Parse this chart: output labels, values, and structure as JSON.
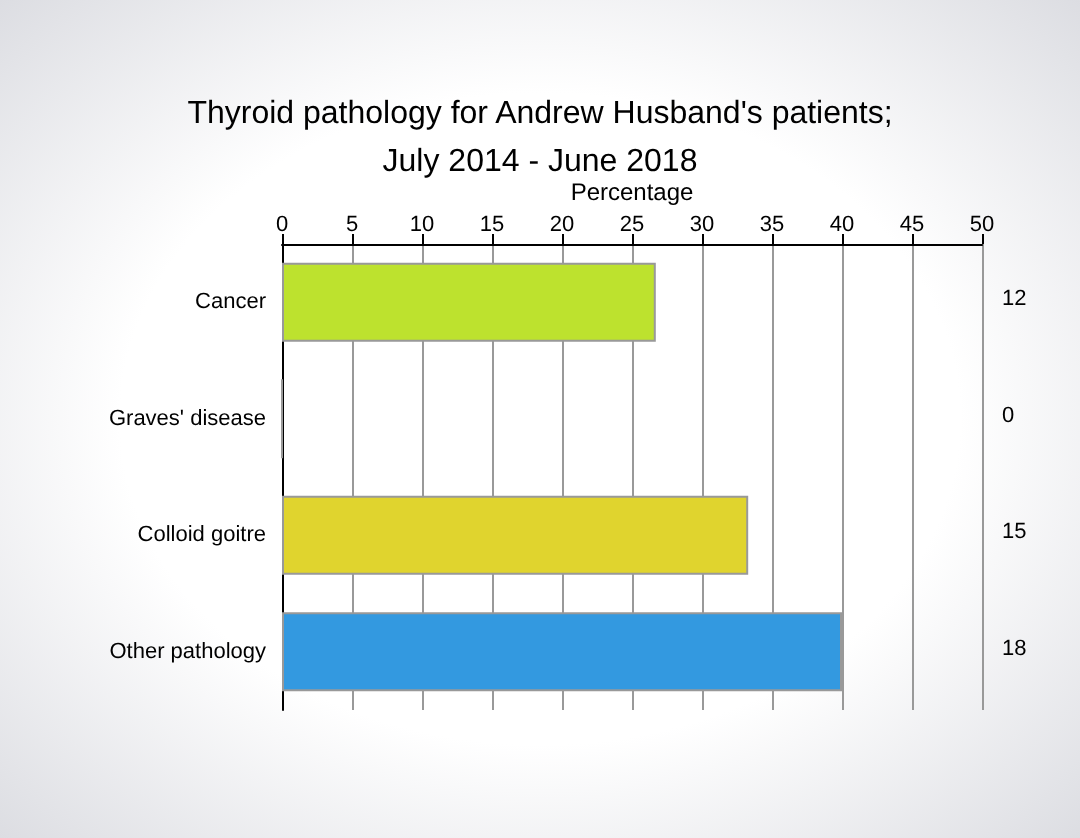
{
  "chart_data": {
    "type": "bar",
    "orientation": "horizontal",
    "title": "Thyroid pathology for Andrew Husband's patients;",
    "subtitle": "July 2014 - June 2018",
    "xlabel": "Percentage",
    "categories": [
      "Cancer",
      "Graves' disease",
      "Colloid goitre",
      "Other pathology"
    ],
    "values": [
      26.7,
      0,
      33.3,
      40
    ],
    "colors": [
      "#bde22e",
      "#999999",
      "#e0d42e",
      "#3399e0"
    ],
    "xlim": [
      0,
      50
    ],
    "xticks": [
      0,
      5,
      10,
      15,
      20,
      25,
      30,
      35,
      40,
      45,
      50
    ],
    "grid": "x",
    "annotations": [
      "12",
      "0",
      "15",
      "18"
    ]
  }
}
